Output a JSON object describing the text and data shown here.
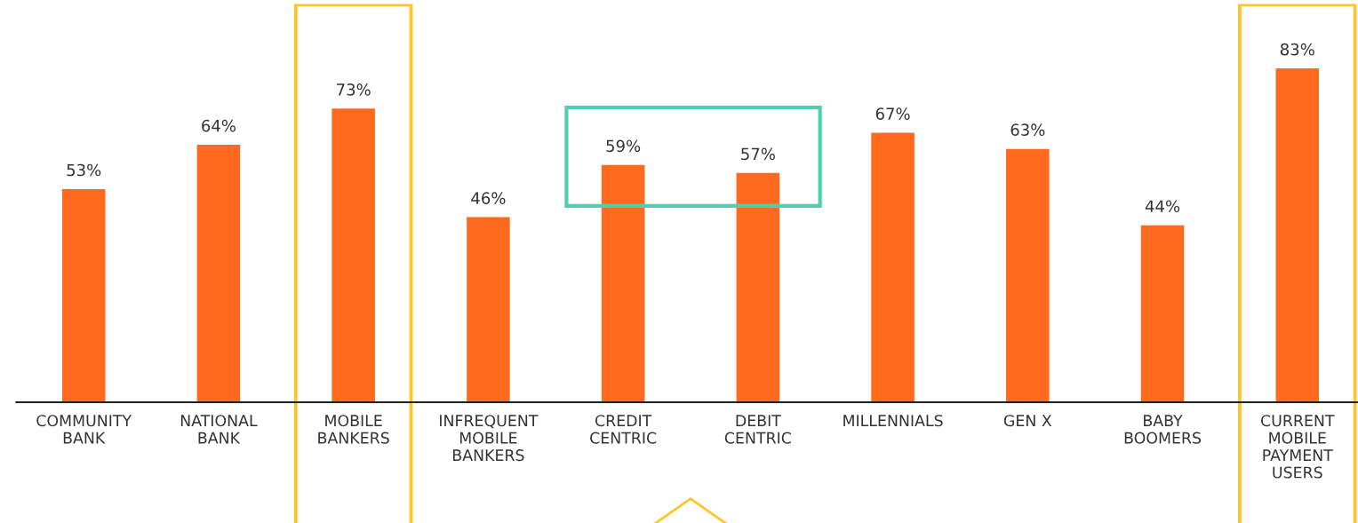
{
  "chart_data": {
    "type": "bar",
    "categories": [
      "COMMUNITY\nBANK",
      "NATIONAL\nBANK",
      "MOBILE\nBANKERS",
      "INFREQUENT\nMOBILE\nBANKERS",
      "CREDIT\nCENTRIC",
      "DEBIT\nCENTRIC",
      "MILLENNIALS",
      "GEN X",
      "BABY\nBOOMERS",
      "CURRENT\nMOBILE\nPAYMENT\nUSERS"
    ],
    "values": [
      53,
      64,
      73,
      46,
      59,
      57,
      67,
      63,
      44,
      83
    ],
    "value_labels": [
      "53%",
      "64%",
      "73%",
      "46%",
      "59%",
      "57%",
      "67%",
      "63%",
      "44%",
      "83%"
    ],
    "color": "#ff6a1f",
    "grid": false,
    "legend": false
  }
}
